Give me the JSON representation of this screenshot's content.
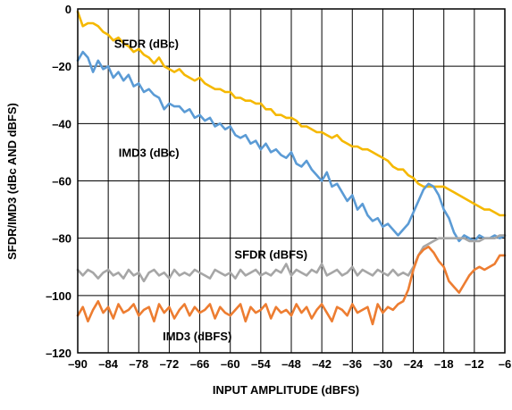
{
  "chart_data": {
    "type": "line",
    "title": "",
    "xlabel": "INPUT AMPLITUDE (dBFS)",
    "ylabel": "SFDR/IMD3 (dBc AND dBFS)",
    "xlim": [
      -90,
      -6
    ],
    "ylim": [
      -120,
      0
    ],
    "xticks": [
      -90,
      -84,
      -78,
      -72,
      -66,
      -60,
      -54,
      -48,
      -42,
      -36,
      -30,
      -24,
      -18,
      -12,
      -6
    ],
    "yticks": [
      0,
      -20,
      -40,
      -60,
      -80,
      -100,
      -120
    ],
    "grid": true,
    "series": [
      {
        "name": "SFDR (dBc)",
        "color": "#f5b800",
        "x": [
          -90,
          -89,
          -88,
          -87,
          -86,
          -85,
          -84,
          -83,
          -82,
          -81,
          -80,
          -79,
          -78,
          -77,
          -76,
          -75,
          -74,
          -73,
          -72,
          -71,
          -70,
          -69,
          -68,
          -67,
          -66,
          -65,
          -64,
          -63,
          -62,
          -61,
          -60,
          -59,
          -58,
          -57,
          -56,
          -55,
          -54,
          -53,
          -52,
          -51,
          -50,
          -49,
          -48,
          -47,
          -46,
          -45,
          -44,
          -43,
          -42,
          -41,
          -40,
          -39,
          -38,
          -37,
          -36,
          -35,
          -34,
          -33,
          -32,
          -31,
          -30,
          -29,
          -28,
          -27,
          -26,
          -25,
          -24,
          -23,
          -22,
          -21,
          -20,
          -19,
          -18,
          -17,
          -16,
          -15,
          -14,
          -13,
          -12,
          -11,
          -10,
          -9,
          -8,
          -7,
          -6
        ],
        "values": [
          -1,
          -6,
          -5,
          -5,
          -6,
          -8,
          -9,
          -11,
          -10,
          -12,
          -13,
          -15,
          -14,
          -16,
          -17,
          -19,
          -17,
          -20,
          -21,
          -22,
          -21,
          -23,
          -24,
          -25,
          -24,
          -26,
          -27,
          -28,
          -28,
          -29,
          -29,
          -31,
          -31,
          -32,
          -32,
          -33,
          -33,
          -35,
          -35,
          -37,
          -37,
          -38,
          -38,
          -39,
          -41,
          -41,
          -42,
          -43,
          -43,
          -44,
          -45,
          -44,
          -46,
          -47,
          -48,
          -48,
          -49,
          -49,
          -50,
          -51,
          -52,
          -53,
          -55,
          -56,
          -56,
          -58,
          -59,
          -61,
          -62,
          -62,
          -62,
          -62,
          -62,
          -63,
          -64,
          -65,
          -66,
          -67,
          -68,
          -69,
          -70,
          -70,
          -71,
          -72,
          -72
        ]
      },
      {
        "name": "IMD3 (dBc)",
        "color": "#5b9bd5",
        "x": [
          -90,
          -89,
          -88,
          -87,
          -86,
          -85,
          -84,
          -83,
          -82,
          -81,
          -80,
          -79,
          -78,
          -77,
          -76,
          -75,
          -74,
          -73,
          -72,
          -71,
          -70,
          -69,
          -68,
          -67,
          -66,
          -65,
          -64,
          -63,
          -62,
          -61,
          -60,
          -59,
          -58,
          -57,
          -56,
          -55,
          -54,
          -53,
          -52,
          -51,
          -50,
          -49,
          -48,
          -47,
          -46,
          -45,
          -44,
          -43,
          -42,
          -41,
          -40,
          -39,
          -38,
          -37,
          -36,
          -35,
          -34,
          -33,
          -32,
          -31,
          -30,
          -29,
          -28,
          -27,
          -26,
          -25,
          -24,
          -23,
          -22,
          -21,
          -20,
          -19,
          -18,
          -17,
          -16,
          -15,
          -14,
          -13,
          -12,
          -11,
          -10,
          -9,
          -8,
          -7,
          -6
        ],
        "values": [
          -18,
          -15,
          -17,
          -22,
          -18,
          -21,
          -20,
          -24,
          -22,
          -25,
          -23,
          -27,
          -26,
          -29,
          -28,
          -30,
          -31,
          -35,
          -33,
          -34,
          -34,
          -36,
          -35,
          -38,
          -37,
          -39,
          -38,
          -41,
          -40,
          -42,
          -41,
          -44,
          -45,
          -44,
          -47,
          -46,
          -49,
          -47,
          -50,
          -49,
          -51,
          -52,
          -50,
          -54,
          -55,
          -53,
          -56,
          -58,
          -60,
          -57,
          -62,
          -61,
          -64,
          -67,
          -65,
          -70,
          -68,
          -72,
          -74,
          -73,
          -76,
          -75,
          -77,
          -79,
          -77,
          -75,
          -71,
          -67,
          -63,
          -61,
          -62,
          -65,
          -70,
          -73,
          -78,
          -81,
          -79,
          -80,
          -81,
          -79,
          -80,
          -80,
          -79,
          -80,
          -79
        ]
      },
      {
        "name": "SFDR (dBFS)",
        "color": "#a6a6a6",
        "x": [
          -90,
          -89,
          -88,
          -87,
          -86,
          -85,
          -84,
          -83,
          -82,
          -81,
          -80,
          -79,
          -78,
          -77,
          -76,
          -75,
          -74,
          -73,
          -72,
          -71,
          -70,
          -69,
          -68,
          -67,
          -66,
          -65,
          -64,
          -63,
          -62,
          -61,
          -60,
          -59,
          -58,
          -57,
          -56,
          -55,
          -54,
          -53,
          -52,
          -51,
          -50,
          -49,
          -48,
          -47,
          -46,
          -45,
          -44,
          -43,
          -42,
          -41,
          -40,
          -39,
          -38,
          -37,
          -36,
          -35,
          -34,
          -33,
          -32,
          -31,
          -30,
          -29,
          -28,
          -27,
          -26,
          -25,
          -24,
          -23,
          -22,
          -21,
          -20,
          -19,
          -18,
          -17,
          -16,
          -15,
          -14,
          -13,
          -12,
          -11,
          -10,
          -9,
          -8,
          -7,
          -6
        ],
        "values": [
          -91,
          -93,
          -91,
          -92,
          -94,
          -92,
          -91,
          -93,
          -92,
          -94,
          -91,
          -93,
          -92,
          -95,
          -92,
          -91,
          -93,
          -92,
          -94,
          -91,
          -93,
          -92,
          -93,
          -91,
          -92,
          -93,
          -94,
          -91,
          -92,
          -93,
          -92,
          -94,
          -91,
          -93,
          -92,
          -91,
          -93,
          -92,
          -93,
          -91,
          -92,
          -89,
          -93,
          -91,
          -92,
          -93,
          -91,
          -92,
          -89,
          -93,
          -92,
          -91,
          -93,
          -92,
          -90,
          -93,
          -91,
          -92,
          -93,
          -91,
          -92,
          -93,
          -91,
          -93,
          -92,
          -93,
          -90,
          -86,
          -83,
          -82,
          -81,
          -80,
          -80,
          -80,
          -80,
          -80,
          -80,
          -81,
          -81,
          -81,
          -80,
          -80,
          -80,
          -79,
          -79
        ]
      },
      {
        "name": "IMD3 (dBFS)",
        "color": "#ed7d31",
        "x": [
          -90,
          -89,
          -88,
          -87,
          -86,
          -85,
          -84,
          -83,
          -82,
          -81,
          -80,
          -79,
          -78,
          -77,
          -76,
          -75,
          -74,
          -73,
          -72,
          -71,
          -70,
          -69,
          -68,
          -67,
          -66,
          -65,
          -64,
          -63,
          -62,
          -61,
          -60,
          -59,
          -58,
          -57,
          -56,
          -55,
          -54,
          -53,
          -52,
          -51,
          -50,
          -49,
          -48,
          -47,
          -46,
          -45,
          -44,
          -43,
          -42,
          -41,
          -40,
          -39,
          -38,
          -37,
          -36,
          -35,
          -34,
          -33,
          -32,
          -31,
          -30,
          -29,
          -28,
          -27,
          -26,
          -25,
          -24,
          -23,
          -22,
          -21,
          -20,
          -19,
          -18,
          -17,
          -16,
          -15,
          -14,
          -13,
          -12,
          -11,
          -10,
          -9,
          -8,
          -7,
          -6
        ],
        "values": [
          -107,
          -104,
          -109,
          -105,
          -102,
          -106,
          -104,
          -108,
          -103,
          -106,
          -105,
          -103,
          -107,
          -105,
          -104,
          -109,
          -103,
          -106,
          -104,
          -108,
          -105,
          -103,
          -107,
          -104,
          -106,
          -105,
          -103,
          -108,
          -104,
          -106,
          -107,
          -105,
          -103,
          -109,
          -104,
          -106,
          -105,
          -103,
          -108,
          -104,
          -106,
          -105,
          -107,
          -103,
          -106,
          -104,
          -108,
          -105,
          -103,
          -106,
          -109,
          -104,
          -105,
          -107,
          -103,
          -106,
          -105,
          -104,
          -110,
          -103,
          -106,
          -104,
          -105,
          -103,
          -102,
          -98,
          -91,
          -86,
          -84,
          -83,
          -85,
          -88,
          -90,
          -95,
          -97,
          -99,
          -96,
          -93,
          -91,
          -90,
          -91,
          -90,
          -89,
          -86,
          -86
        ]
      }
    ],
    "annotations": [
      {
        "text": "SFDR (dBc)",
        "x": -76.5,
        "y": -12
      },
      {
        "text": "IMD3 (dBc)",
        "x": -76,
        "y": -50
      },
      {
        "text": "SFDR (dBFS)",
        "x": -52,
        "y": -85.5
      },
      {
        "text": "IMD3 (dBFS)",
        "x": -66.5,
        "y": -114
      }
    ]
  }
}
